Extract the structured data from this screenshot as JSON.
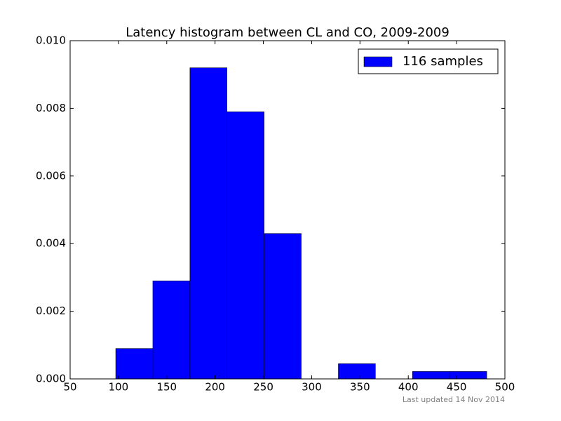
{
  "chart_data": {
    "type": "histogram",
    "title": "Latency histogram between CL and CO, 2009-2009",
    "bins": [
      97.2,
      135.6,
      174.0,
      212.4,
      250.8,
      289.2,
      327.6,
      366.0,
      404.4,
      442.8,
      481.2
    ],
    "series": [
      {
        "name": "116 samples",
        "color": "#0000ff",
        "values": [
          0.0009,
          0.0029,
          0.0092,
          0.0079,
          0.0043,
          0,
          0.00045,
          0,
          0.00022,
          0.00022
        ]
      }
    ],
    "xlim": [
      50,
      500
    ],
    "xticks": [
      50,
      100,
      150,
      200,
      250,
      300,
      350,
      400,
      450,
      500
    ],
    "ylim": [
      0,
      0.01
    ],
    "yticks": [
      {
        "value": 0,
        "label": "0.000"
      },
      {
        "value": 0.002,
        "label": "0.002"
      },
      {
        "value": 0.004,
        "label": "0.004"
      },
      {
        "value": 0.006,
        "label": "0.006"
      },
      {
        "value": 0.008,
        "label": "0.008"
      },
      {
        "value": 0.01,
        "label": "0.010"
      }
    ],
    "legend": "upper right",
    "footer": "Last updated 14 Nov 2014"
  }
}
